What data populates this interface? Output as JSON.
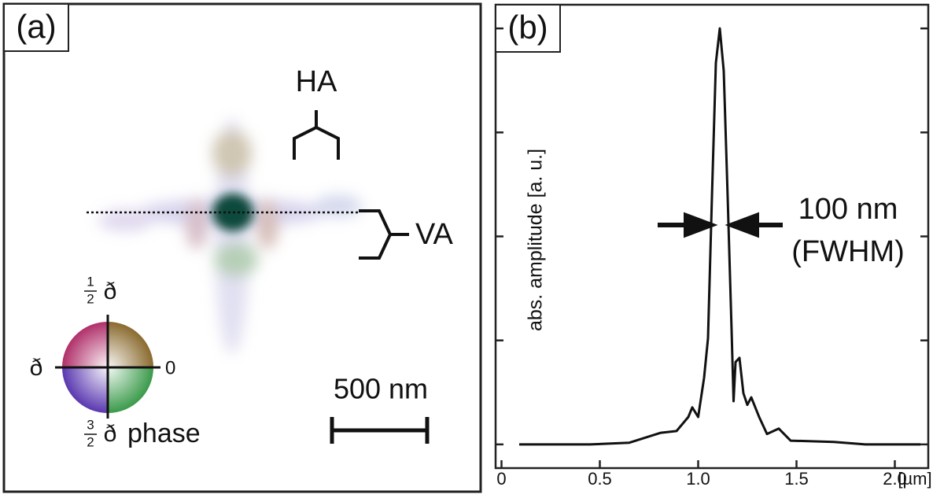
{
  "panel_a": {
    "label": "(a)",
    "ha": "HA",
    "va": "VA",
    "scale_bar": "500 nm",
    "phase_wheel": {
      "title": "phase",
      "right": "0",
      "left": "ð",
      "top": {
        "num": "1",
        "den": "2",
        "symbol": "ð"
      },
      "bottom": {
        "num": "3",
        "den": "2",
        "symbol": "ð"
      }
    }
  },
  "chart_data": {
    "type": "line",
    "label": "(b)",
    "y_label": "abs. amplitude  [a. u.]",
    "x_unit": "[µm]",
    "annotations": [
      "100 nm",
      "(FWHM)"
    ],
    "x": [
      0.09,
      0.25,
      0.45,
      0.65,
      0.81,
      0.89,
      0.95,
      0.97,
      1.0,
      1.03,
      1.05,
      1.07,
      1.09,
      1.11,
      1.13,
      1.15,
      1.17,
      1.18,
      1.19,
      1.21,
      1.23,
      1.25,
      1.27,
      1.31,
      1.35,
      1.41,
      1.47,
      1.69,
      1.85,
      2.13
    ],
    "values": [
      0.0,
      0.0,
      0.0,
      0.004,
      0.028,
      0.032,
      0.066,
      0.089,
      0.066,
      0.16,
      0.255,
      0.595,
      0.917,
      1.0,
      0.898,
      0.595,
      0.274,
      0.104,
      0.198,
      0.208,
      0.123,
      0.095,
      0.113,
      0.066,
      0.025,
      0.038,
      0.009,
      0.006,
      0.0,
      0.0
    ],
    "color": "#111111",
    "xlim": [
      -0.03,
      2.17
    ],
    "xticks": [
      0,
      0.5,
      {
        "value": 1,
        "label": "1.0"
      },
      1.5,
      {
        "value": 2,
        "label": "2.0"
      }
    ],
    "ylim": [
      -0.057,
      1.057
    ],
    "yticks": [
      0,
      0.25,
      0.5,
      0.75,
      1
    ]
  }
}
